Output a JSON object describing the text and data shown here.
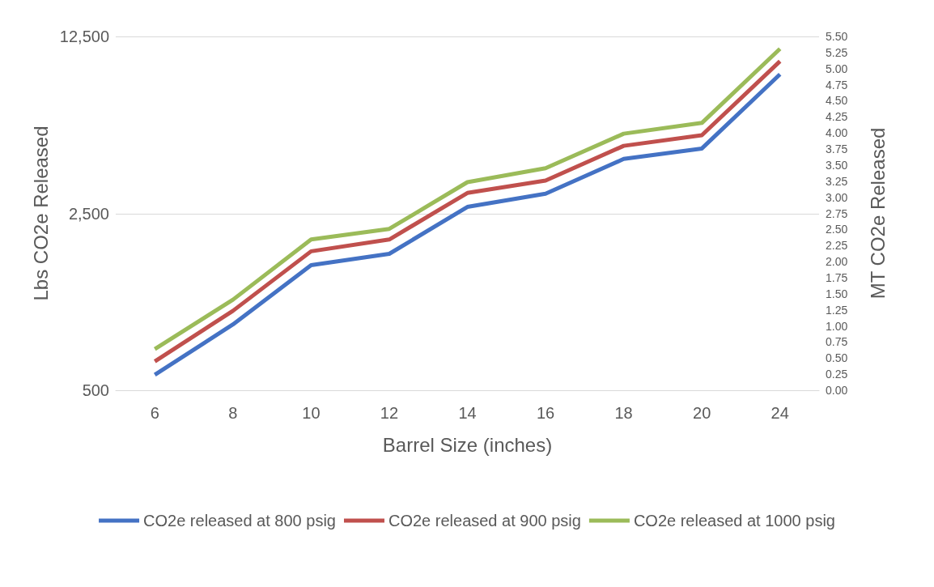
{
  "chart_data": {
    "type": "line",
    "xlabel": "Barrel Size (inches)",
    "ylabel": "Lbs CO2e Released",
    "y2label": "MT CO2e Released",
    "categories": [
      "6",
      "8",
      "10",
      "12",
      "14",
      "16",
      "18",
      "20",
      "24"
    ],
    "series": [
      {
        "name": "CO2e released at 800 psig",
        "color": "#4472c4",
        "values": [
          576,
          910,
          1560,
          1730,
          2650,
          2990,
          4100,
          4510,
          8860
        ]
      },
      {
        "name": "CO2e released at 900 psig",
        "color": "#c0504d",
        "values": [
          650,
          1030,
          1770,
          1970,
          3010,
          3370,
          4620,
          5090,
          9980
        ]
      },
      {
        "name": "CO2e released at 1000 psig",
        "color": "#9bbb59",
        "values": [
          727,
          1140,
          1970,
          2170,
          3320,
          3770,
          5160,
          5690,
          11170
        ]
      }
    ],
    "log": true,
    "ylim": [
      500,
      12500
    ],
    "yticks": [
      {
        "value": 500,
        "label": "500"
      },
      {
        "value": 2500,
        "label": "2,500"
      },
      {
        "value": 12500,
        "label": "12,500"
      }
    ],
    "y2lim": [
      0,
      5.5
    ],
    "y2ticks": [
      {
        "value": 0,
        "label": "0.00"
      },
      {
        "value": 0.25,
        "label": "0.25"
      },
      {
        "value": 0.5,
        "label": "0.50"
      },
      {
        "value": 0.75,
        "label": "0.75"
      },
      {
        "value": 1,
        "label": "1.00"
      },
      {
        "value": 1.25,
        "label": "1.25"
      },
      {
        "value": 1.5,
        "label": "1.50"
      },
      {
        "value": 1.75,
        "label": "1.75"
      },
      {
        "value": 2,
        "label": "2.00"
      },
      {
        "value": 2.25,
        "label": "2.25"
      },
      {
        "value": 2.5,
        "label": "2.50"
      },
      {
        "value": 2.75,
        "label": "2.75"
      },
      {
        "value": 3,
        "label": "3.00"
      },
      {
        "value": 3.25,
        "label": "3.25"
      },
      {
        "value": 3.5,
        "label": "3.50"
      },
      {
        "value": 3.75,
        "label": "3.75"
      },
      {
        "value": 4,
        "label": "4.00"
      },
      {
        "value": 4.25,
        "label": "4.25"
      },
      {
        "value": 4.5,
        "label": "4.50"
      },
      {
        "value": 4.75,
        "label": "4.75"
      },
      {
        "value": 5,
        "label": "5.00"
      },
      {
        "value": 5.25,
        "label": "5.25"
      },
      {
        "value": 5.5,
        "label": "5.50"
      }
    ],
    "grid": "y",
    "legend": "bottom",
    "marker": "none",
    "line_style": "solid"
  }
}
